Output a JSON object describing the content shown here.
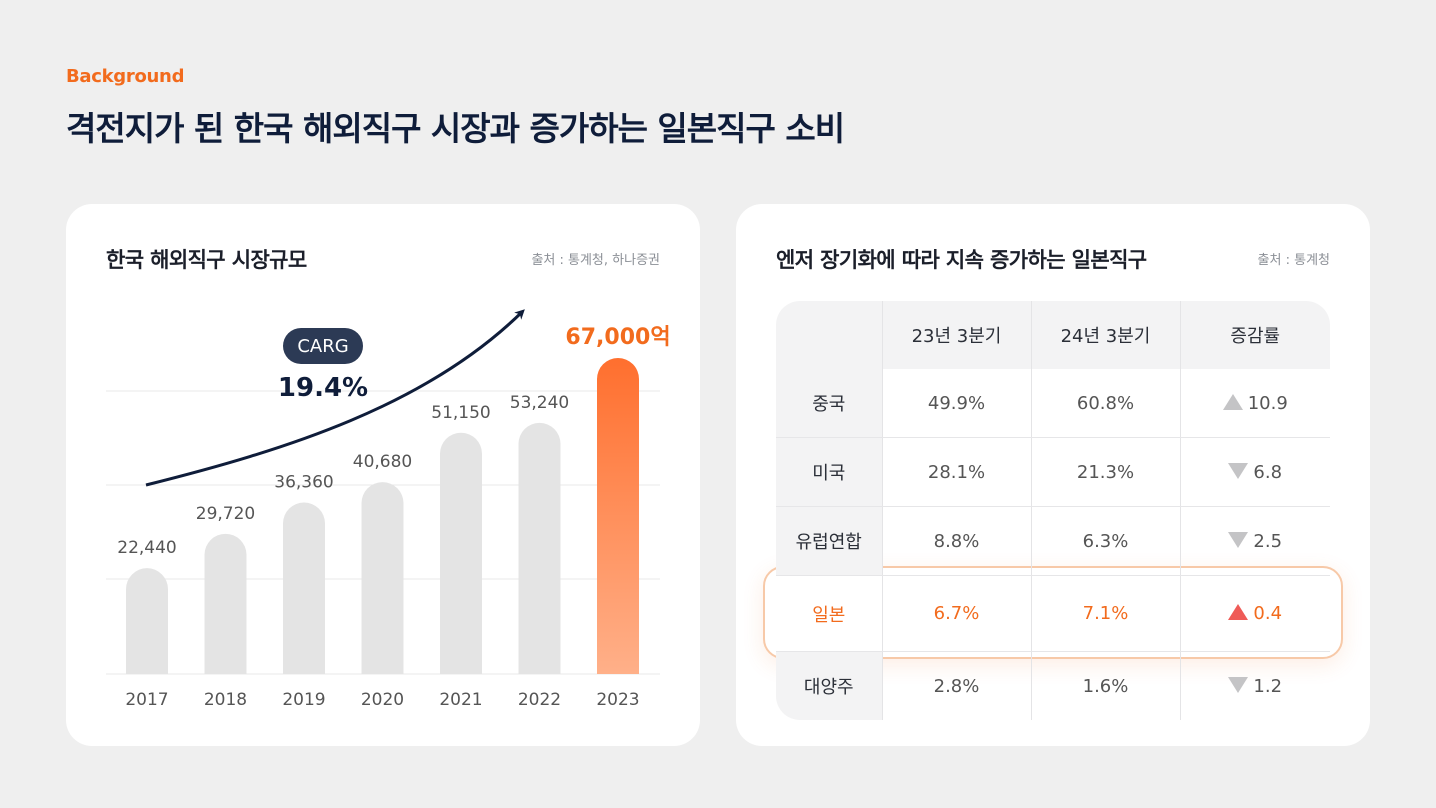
{
  "header": {
    "eyebrow": "Background",
    "title": "격전지가 된 한국 해외직구 시장과 증가하는 일본직구 소비"
  },
  "left_card": {
    "title": "한국 해외직구 시장규모",
    "source": "출처 : 통계청, 하나증권",
    "carg_label": "CARG",
    "carg_value": "19.4%",
    "last_label": "67,000억"
  },
  "right_card": {
    "title": "엔저 장기화에 따라 지속 증가하는 일본직구",
    "source": "출처 : 통계청",
    "columns": [
      "",
      "23년 3분기",
      "24년 3분기",
      "증감률"
    ],
    "rows": [
      {
        "country": "중국",
        "q23": "49.9%",
        "q24": "60.8%",
        "change": "10.9",
        "dir": "up"
      },
      {
        "country": "미국",
        "q23": "28.1%",
        "q24": "21.3%",
        "change": "6.8",
        "dir": "down"
      },
      {
        "country": "유럽연합",
        "q23": "8.8%",
        "q24": "6.3%",
        "change": "2.5",
        "dir": "down"
      },
      {
        "country": "일본",
        "q23": "6.7%",
        "q24": "7.1%",
        "change": "0.4",
        "dir": "up"
      },
      {
        "country": "대양주",
        "q23": "2.8%",
        "q24": "1.6%",
        "change": "1.2",
        "dir": "down"
      }
    ]
  },
  "colors": {
    "accent": "#f26b1d",
    "bar_grey": "#e4e4e4",
    "bar_orange_top": "#ff6f2e",
    "bar_orange_bottom": "#ffb089",
    "navy": "#0f1d3a",
    "pill": "#2c3a55",
    "up_hot": "#ef5b57"
  },
  "chart_data": [
    {
      "type": "bar",
      "title": "한국 해외직구 시장규모",
      "categories": [
        "2017",
        "2018",
        "2019",
        "2020",
        "2021",
        "2022",
        "2023"
      ],
      "values": [
        22440,
        29720,
        36360,
        40680,
        51150,
        53240,
        67000
      ],
      "value_labels": [
        "22,440",
        "29,720",
        "36,360",
        "40,680",
        "51,150",
        "53,240",
        "67,000억"
      ],
      "ylim": [
        0,
        67000
      ],
      "grid": true,
      "annotations": [
        "CARG",
        "19.4%"
      ]
    },
    {
      "type": "table",
      "title": "엔저 장기화에 따라 지속 증가하는 일본직구",
      "columns": [
        "23년 3분기",
        "24년 3분기",
        "증감률"
      ],
      "rows": [
        "중국",
        "미국",
        "유럽연합",
        "일본",
        "대양주"
      ],
      "values": [
        [
          "49.9%",
          "60.8%",
          "10.9"
        ],
        [
          "28.1%",
          "21.3%",
          "6.8"
        ],
        [
          "8.8%",
          "6.3%",
          "2.5"
        ],
        [
          "6.7%",
          "7.1%",
          "0.4"
        ],
        [
          "2.8%",
          "1.6%",
          "1.2"
        ]
      ]
    }
  ]
}
